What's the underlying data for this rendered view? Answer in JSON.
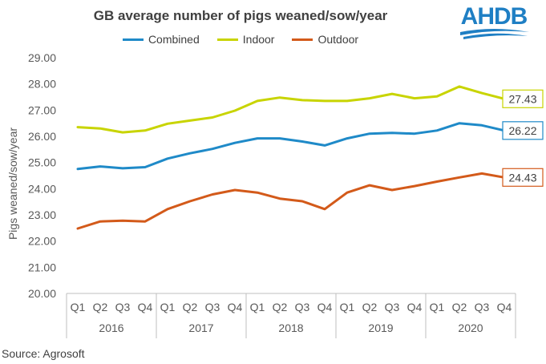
{
  "chart_data": {
    "type": "line",
    "title": "GB average number of pigs weaned/sow/year",
    "ylabel": "Pigs weaned/sow/year",
    "xlabel": "",
    "ylim": [
      20,
      29
    ],
    "yticks": [
      "20.00",
      "21.00",
      "22.00",
      "23.00",
      "24.00",
      "25.00",
      "26.00",
      "27.00",
      "28.00",
      "29.00"
    ],
    "quarters": [
      "Q1",
      "Q2",
      "Q3",
      "Q4",
      "Q1",
      "Q2",
      "Q3",
      "Q4",
      "Q1",
      "Q2",
      "Q3",
      "Q4",
      "Q1",
      "Q2",
      "Q3",
      "Q4",
      "Q1",
      "Q2",
      "Q3",
      "Q4"
    ],
    "years": [
      "2016",
      "2017",
      "2018",
      "2019",
      "2020"
    ],
    "grid": false,
    "legend_position": "top",
    "series": [
      {
        "name": "Combined",
        "color": "#1f8ac8",
        "values": [
          24.75,
          24.85,
          24.78,
          24.82,
          25.15,
          25.35,
          25.52,
          25.75,
          25.92,
          25.92,
          25.8,
          25.65,
          25.92,
          26.1,
          26.13,
          26.1,
          26.22,
          26.5,
          26.42,
          26.22
        ],
        "end_label": "26.22"
      },
      {
        "name": "Indoor",
        "color": "#c8d400",
        "values": [
          26.35,
          26.3,
          26.15,
          26.22,
          26.48,
          26.6,
          26.72,
          26.98,
          27.35,
          27.48,
          27.38,
          27.35,
          27.35,
          27.45,
          27.62,
          27.45,
          27.52,
          27.9,
          27.65,
          27.43
        ],
        "end_label": "27.43"
      },
      {
        "name": "Outdoor",
        "color": "#d35a1a",
        "values": [
          22.48,
          22.75,
          22.78,
          22.75,
          23.22,
          23.52,
          23.78,
          23.95,
          23.85,
          23.62,
          23.52,
          23.22,
          23.85,
          24.13,
          23.95,
          24.1,
          24.27,
          24.43,
          24.58,
          24.43
        ],
        "end_label": "24.43"
      }
    ],
    "source": "Source: Agrosoft"
  },
  "logo": {
    "text": "AHDB",
    "color": "#1f7fc4"
  }
}
